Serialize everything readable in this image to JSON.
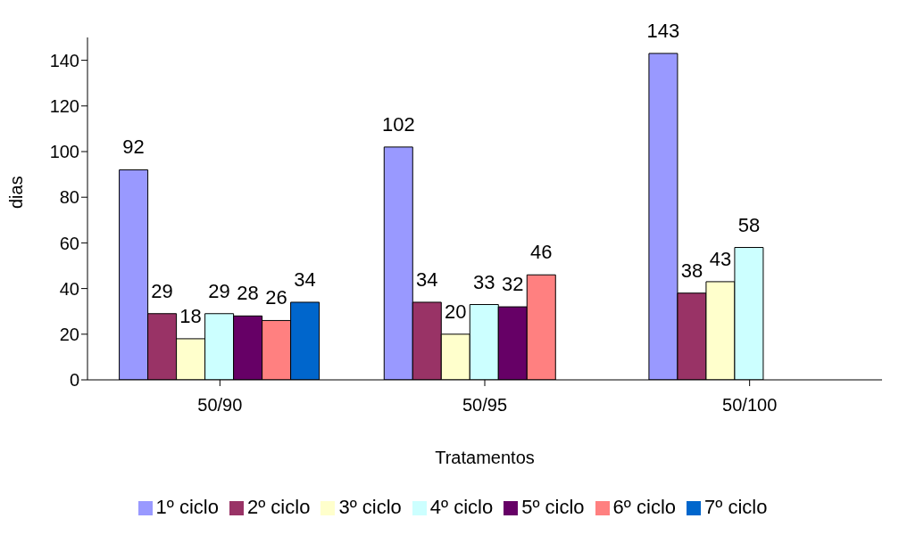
{
  "chart_data": {
    "type": "bar",
    "xlabel": "Tratamentos",
    "ylabel": "dias",
    "categories": [
      "50/90",
      "50/95",
      "50/100"
    ],
    "series": [
      {
        "name": "1º ciclo",
        "color": "#9999ff",
        "values": [
          92,
          102,
          143
        ]
      },
      {
        "name": "2º ciclo",
        "color": "#993366",
        "values": [
          29,
          34,
          38
        ]
      },
      {
        "name": "3º ciclo",
        "color": "#ffffcc",
        "values": [
          18,
          20,
          43
        ]
      },
      {
        "name": "4º ciclo",
        "color": "#ccffff",
        "values": [
          29,
          33,
          58
        ]
      },
      {
        "name": "5º ciclo",
        "color": "#660066",
        "values": [
          28,
          32,
          null
        ]
      },
      {
        "name": "6º ciclo",
        "color": "#ff8080",
        "values": [
          26,
          46,
          null
        ]
      },
      {
        "name": "7º ciclo",
        "color": "#0066cc",
        "values": [
          34,
          null,
          null
        ]
      }
    ],
    "ylim": [
      0,
      150
    ],
    "yticks": [
      0,
      20,
      40,
      60,
      80,
      100,
      120,
      140
    ],
    "grid": false,
    "legend": "bottom",
    "data_labels": true
  }
}
